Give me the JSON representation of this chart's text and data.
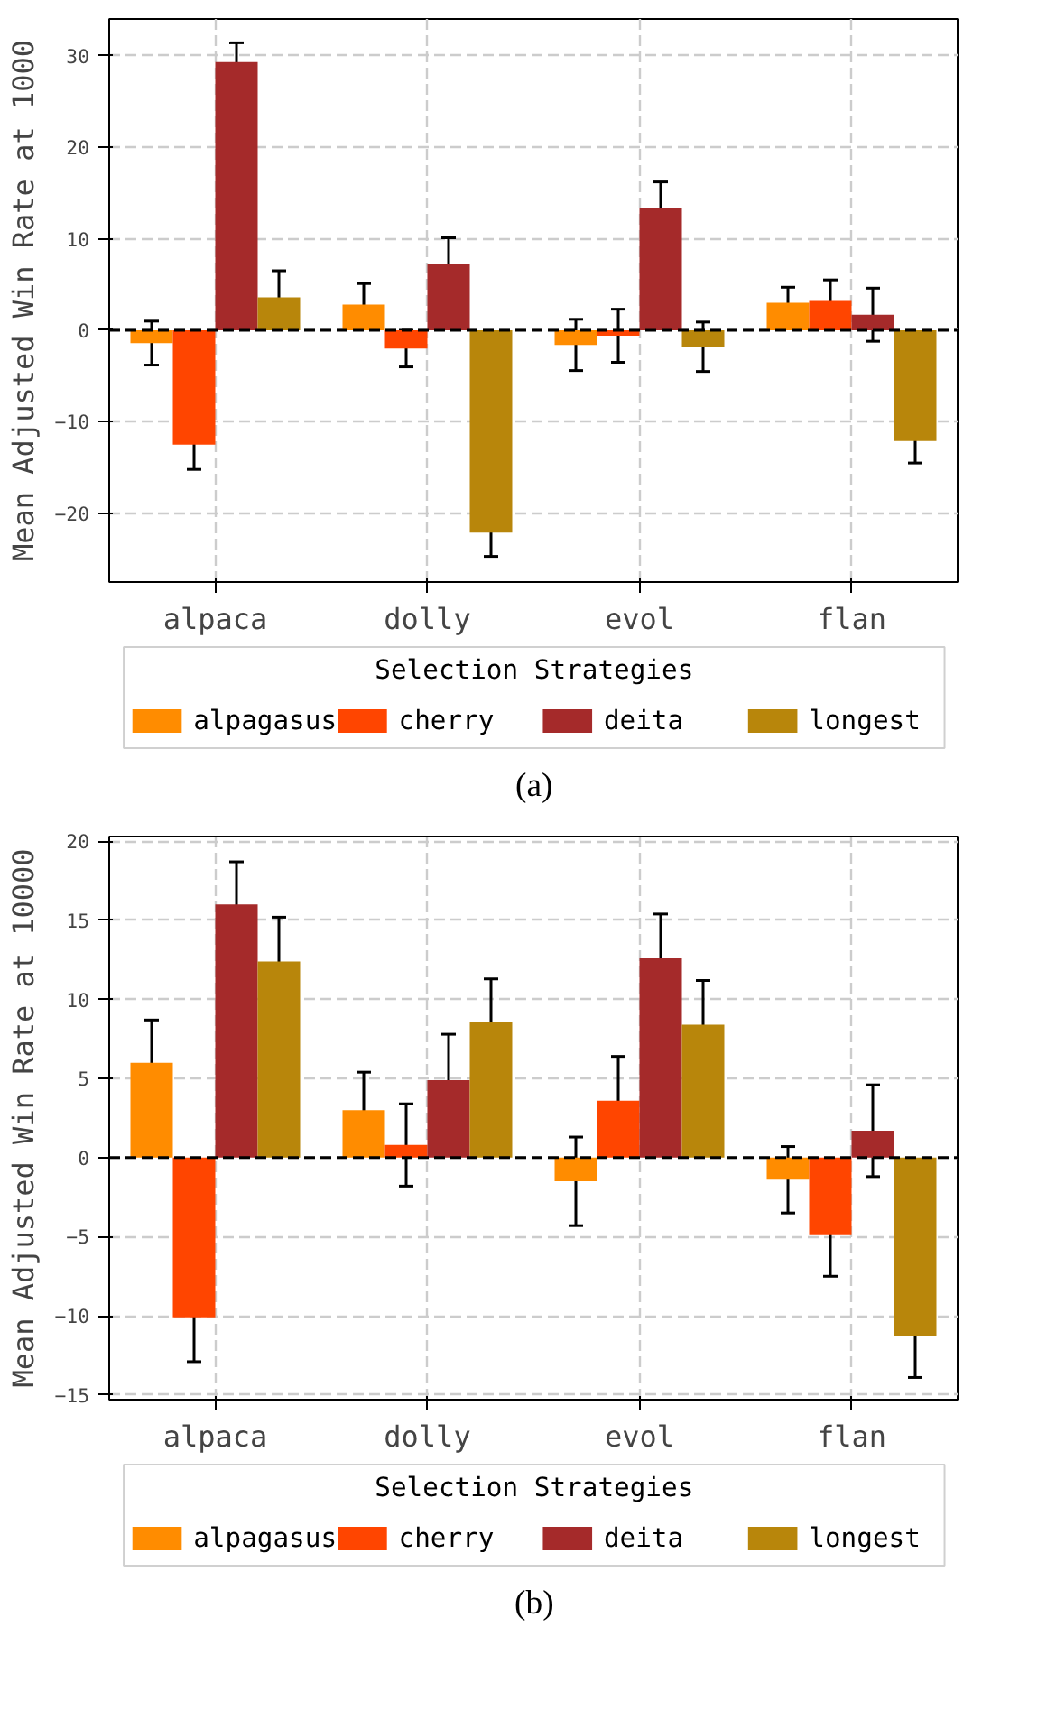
{
  "chart_data": [
    {
      "type": "bar",
      "ylabel": "Mean Adjusted Win Rate at 1000",
      "categories": [
        "alpaca",
        "dolly",
        "evol",
        "flan"
      ],
      "ylim": [
        -27.5,
        34
      ],
      "yticks": [
        -20,
        -10,
        0,
        10,
        20,
        30
      ],
      "grid": true,
      "legend": "bottom",
      "legend_title": "Selection Strategies",
      "ref_lines": [
        {
          "axis": "y",
          "value": 0,
          "color": "#000000",
          "line_style": "dashed"
        }
      ],
      "annotations": [
        "(a)"
      ],
      "series": [
        {
          "name": "alpagasus",
          "color": "#ff8c00",
          "values": [
            -1.4,
            2.8,
            -1.6,
            3.0
          ],
          "errors": [
            2.4,
            2.3,
            2.8,
            1.7
          ]
        },
        {
          "name": "cherry",
          "color": "#ff4500",
          "values": [
            -12.5,
            -2.0,
            -0.6,
            3.2
          ],
          "errors": [
            2.7,
            2.0,
            2.9,
            2.3
          ]
        },
        {
          "name": "deita",
          "color": "#a52a2a",
          "values": [
            29.3,
            7.2,
            13.4,
            1.7
          ],
          "errors": [
            2.1,
            2.9,
            2.8,
            2.9
          ]
        },
        {
          "name": "longest",
          "color": "#b8860b",
          "values": [
            3.6,
            -22.1,
            -1.8,
            -12.1
          ],
          "errors": [
            2.9,
            2.6,
            2.7,
            2.4
          ]
        }
      ]
    },
    {
      "type": "bar",
      "ylabel": "Mean Adjusted Win Rate at 10000",
      "categories": [
        "alpaca",
        "dolly",
        "evol",
        "flan"
      ],
      "ylim": [
        -15.3,
        20.3
      ],
      "yticks": [
        -15,
        -10,
        -5,
        0,
        5,
        10,
        15,
        20
      ],
      "grid": true,
      "legend": "bottom",
      "legend_title": "Selection Strategies",
      "ref_lines": [
        {
          "axis": "y",
          "value": 0,
          "color": "#000000",
          "line_style": "dashed"
        }
      ],
      "annotations": [
        "(b)"
      ],
      "series": [
        {
          "name": "alpagasus",
          "color": "#ff8c00",
          "values": [
            6.0,
            3.0,
            -1.5,
            -1.4
          ],
          "errors": [
            2.7,
            2.4,
            2.8,
            2.1
          ]
        },
        {
          "name": "cherry",
          "color": "#ff4500",
          "values": [
            -10.1,
            0.8,
            3.6,
            -4.9
          ],
          "errors": [
            2.8,
            2.6,
            2.8,
            2.6
          ]
        },
        {
          "name": "deita",
          "color": "#a52a2a",
          "values": [
            16.0,
            4.9,
            12.6,
            1.7
          ],
          "errors": [
            2.7,
            2.9,
            2.8,
            2.9
          ]
        },
        {
          "name": "longest",
          "color": "#b8860b",
          "values": [
            12.4,
            8.6,
            8.4,
            -11.3
          ],
          "errors": [
            2.8,
            2.7,
            2.8,
            2.6
          ]
        }
      ]
    }
  ]
}
